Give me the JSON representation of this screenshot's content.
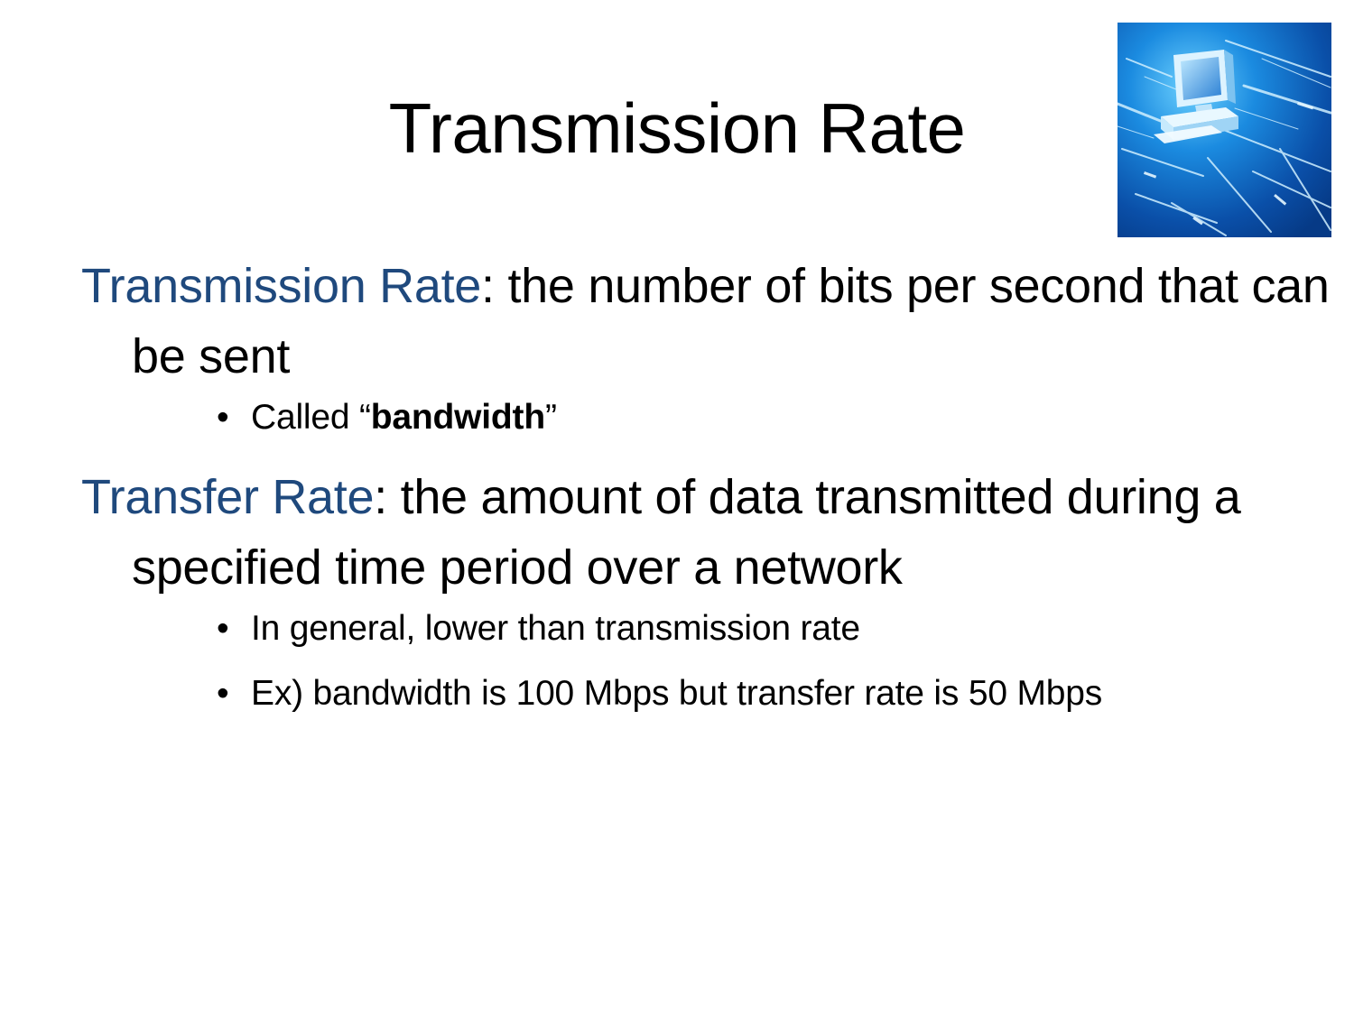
{
  "slide": {
    "title": "Transmission Rate",
    "image_icon": "computer-network-icon",
    "definitions": [
      {
        "term": "Transmission Rate",
        "separator": ":",
        "definition": " the number of bits per second that can be sent",
        "bullets": [
          {
            "prefix": "Called “",
            "bold": "bandwidth",
            "suffix": "”"
          }
        ]
      },
      {
        "term": "Transfer Rate",
        "separator": ":",
        "definition": " the amount of data transmitted during a specified time period over a network",
        "bullets": [
          {
            "text": "In general, lower than transmission rate"
          },
          {
            "text": "Ex) bandwidth is 100 Mbps but transfer rate is 50 Mbps"
          }
        ]
      }
    ],
    "bullet_glyph": "•",
    "colors": {
      "term": "#1F497D",
      "text": "#000000",
      "image_bg": "#0A4FA8"
    }
  }
}
